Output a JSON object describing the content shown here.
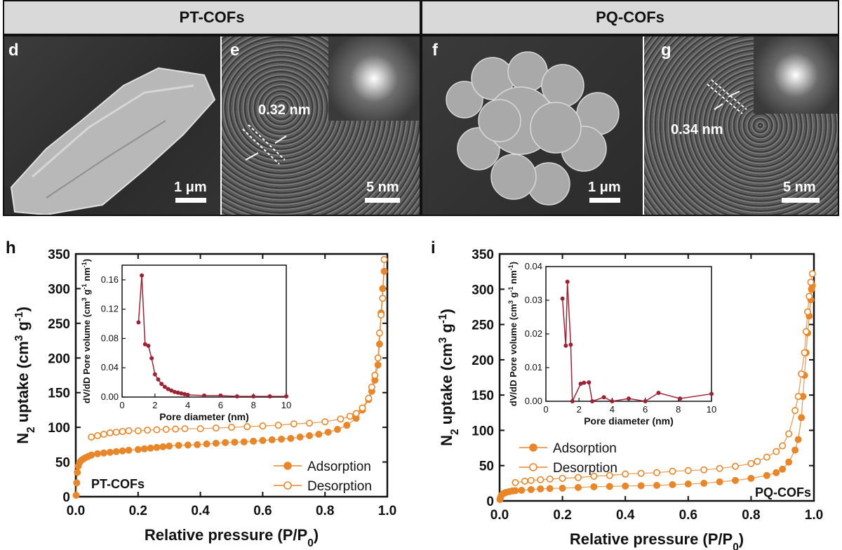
{
  "headers": {
    "left": "PT-COFs",
    "right": "PQ-COFs"
  },
  "micro_panels": {
    "d": {
      "label": "d",
      "scale": "1 μm"
    },
    "e": {
      "label": "e",
      "scale": "5 nm",
      "spacing": "0.32 nm"
    },
    "f": {
      "label": "f",
      "scale": "1 μm"
    },
    "g": {
      "label": "g",
      "scale": "5 nm",
      "spacing": "0.34 nm"
    }
  },
  "colors": {
    "series": "#e8862a",
    "inset": "#9b2335",
    "axis": "#111111"
  },
  "chart_data": [
    {
      "panel": "h",
      "type": "line",
      "title": "",
      "annotation": "PT-COFs",
      "xlabel": "Relative pressure (P/P",
      "xlabel_sub": "0",
      "xlabel_end": ")",
      "ylabel_pre": "N",
      "ylabel_sub": "2",
      "ylabel_mid": " uptake (cm",
      "ylabel_sup1": "3",
      "ylabel_mid2": " g",
      "ylabel_sup2": "-1",
      "ylabel_end": ")",
      "xlim": [
        0,
        1.0
      ],
      "ylim": [
        0,
        350
      ],
      "xticks": [
        "0.0",
        "0.2",
        "0.4",
        "0.6",
        "0.8",
        "1.0"
      ],
      "yticks": [
        "0",
        "50",
        "100",
        "150",
        "200",
        "250",
        "300",
        "350"
      ],
      "legend": [
        "Adsorption",
        "Desorption"
      ],
      "series": [
        {
          "name": "Adsorption",
          "x": [
            0.001,
            0.003,
            0.005,
            0.008,
            0.012,
            0.017,
            0.023,
            0.03,
            0.04,
            0.05,
            0.07,
            0.09,
            0.11,
            0.13,
            0.15,
            0.17,
            0.2,
            0.22,
            0.24,
            0.26,
            0.28,
            0.3,
            0.33,
            0.36,
            0.39,
            0.42,
            0.45,
            0.48,
            0.51,
            0.54,
            0.57,
            0.6,
            0.63,
            0.66,
            0.69,
            0.72,
            0.75,
            0.78,
            0.81,
            0.84,
            0.87,
            0.9,
            0.92,
            0.94,
            0.95,
            0.96,
            0.97,
            0.975,
            0.98,
            0.985,
            0.99
          ],
          "y": [
            2,
            20,
            35,
            44,
            49,
            52,
            54,
            56,
            58,
            60,
            62,
            63,
            64,
            65,
            66,
            67,
            68,
            69,
            70,
            71,
            72,
            73,
            74,
            74.5,
            75,
            76,
            77,
            78,
            78.5,
            79,
            80,
            81,
            82,
            83,
            84,
            86,
            88,
            90,
            93,
            97,
            103,
            113,
            125,
            140,
            152,
            168,
            190,
            220,
            265,
            300,
            325
          ]
        },
        {
          "name": "Desorption",
          "x": [
            0.05,
            0.07,
            0.09,
            0.11,
            0.13,
            0.15,
            0.17,
            0.2,
            0.23,
            0.26,
            0.29,
            0.32,
            0.35,
            0.4,
            0.45,
            0.5,
            0.55,
            0.6,
            0.65,
            0.7,
            0.75,
            0.8,
            0.85,
            0.88,
            0.9,
            0.92,
            0.94,
            0.95,
            0.96,
            0.97,
            0.975,
            0.98,
            0.985,
            0.99
          ],
          "y": [
            86,
            88,
            90,
            92,
            93,
            94,
            95,
            95,
            96,
            96.5,
            97,
            97.5,
            98,
            98,
            99,
            100,
            101,
            102,
            103,
            105,
            106,
            108,
            112,
            116,
            120,
            128,
            142,
            158,
            175,
            200,
            236,
            262,
            286,
            342
          ]
        }
      ],
      "inset": {
        "xlabel": "Pore diameter (nm)",
        "ylabel_pre": "dV/dD Pore volume (cm",
        "ylabel_sup1": "3",
        "ylabel_mid": " g",
        "ylabel_sup2": "-1",
        "ylabel_mid2": " nm",
        "ylabel_sup3": "-1",
        "ylabel_end": ")",
        "xlim": [
          0,
          10
        ],
        "ylim": [
          0,
          0.18
        ],
        "xticks": [
          "0",
          "2",
          "4",
          "6",
          "8",
          "10"
        ],
        "yticks": [
          "0.00",
          "0.04",
          "0.08",
          "0.12",
          "0.16"
        ],
        "x": [
          1.0,
          1.2,
          1.4,
          1.6,
          1.8,
          2.0,
          2.2,
          2.4,
          2.6,
          2.8,
          3.0,
          3.2,
          3.4,
          3.6,
          3.8,
          4.0,
          5.0,
          6.0,
          7.0,
          8.0,
          9.0,
          10.0
        ],
        "y": [
          0.102,
          0.166,
          0.072,
          0.07,
          0.053,
          0.031,
          0.024,
          0.018,
          0.014,
          0.011,
          0.009,
          0.007,
          0.006,
          0.005,
          0.004,
          0.003,
          0.002,
          0.002,
          0.001,
          0.001,
          0.001,
          0.001
        ]
      }
    },
    {
      "panel": "i",
      "type": "line",
      "title": "",
      "annotation": "PQ-COFs",
      "xlabel": "Relative pressure (P/P",
      "xlabel_sub": "0",
      "xlabel_end": ")",
      "ylabel_pre": "N",
      "ylabel_sub": "2",
      "ylabel_mid": " uptake (cm",
      "ylabel_sup1": "3",
      "ylabel_mid2": " g",
      "ylabel_sup2": "-1",
      "ylabel_end": ")",
      "xlim": [
        0,
        1.0
      ],
      "ylim": [
        0,
        350
      ],
      "xticks": [
        "0.0",
        "0.2",
        "0.4",
        "0.6",
        "0.8",
        "1.0"
      ],
      "yticks": [
        "0",
        "50",
        "100",
        "150",
        "200",
        "250",
        "300",
        "350"
      ],
      "legend": [
        "Adsorption",
        "Desorption"
      ],
      "series": [
        {
          "name": "Adsorption",
          "x": [
            0.001,
            0.003,
            0.006,
            0.01,
            0.015,
            0.02,
            0.03,
            0.04,
            0.05,
            0.07,
            0.1,
            0.13,
            0.16,
            0.2,
            0.25,
            0.3,
            0.35,
            0.4,
            0.45,
            0.5,
            0.55,
            0.6,
            0.65,
            0.7,
            0.75,
            0.8,
            0.85,
            0.88,
            0.9,
            0.92,
            0.94,
            0.95,
            0.96,
            0.965,
            0.97,
            0.975,
            0.98,
            0.985,
            0.99,
            0.992,
            0.995
          ],
          "y": [
            2,
            5,
            8,
            10,
            11,
            12,
            13,
            14,
            14.5,
            15,
            16,
            17,
            17.5,
            18,
            19,
            20,
            20.5,
            21,
            21.5,
            22,
            23,
            24,
            25,
            27,
            29,
            32,
            36,
            40,
            45,
            55,
            72,
            87,
            118,
            148,
            178,
            210,
            238,
            262,
            285,
            300,
            305
          ]
        },
        {
          "name": "Desorption",
          "x": [
            0.05,
            0.08,
            0.1,
            0.13,
            0.16,
            0.2,
            0.25,
            0.3,
            0.35,
            0.4,
            0.45,
            0.5,
            0.55,
            0.6,
            0.65,
            0.7,
            0.75,
            0.8,
            0.82,
            0.85,
            0.88,
            0.9,
            0.92,
            0.94,
            0.95,
            0.96,
            0.97,
            0.975,
            0.98,
            0.985,
            0.99,
            0.995
          ],
          "y": [
            26,
            28,
            29,
            30,
            31,
            32,
            33,
            35,
            36,
            38,
            39,
            40,
            42,
            43,
            44,
            46,
            49,
            53,
            56,
            62,
            70,
            78,
            95,
            128,
            148,
            180,
            210,
            240,
            268,
            290,
            310,
            322
          ]
        }
      ],
      "inset": {
        "xlabel": "Pore diameter (nm)",
        "ylabel_pre": "dV/dD Pore volume (cm",
        "ylabel_sup1": "3",
        "ylabel_mid": " g",
        "ylabel_sup2": "-1",
        "ylabel_mid2": " nm",
        "ylabel_sup3": "-1",
        "ylabel_end": ")",
        "xlim": [
          0,
          10
        ],
        "ylim": [
          0,
          0.04
        ],
        "xticks": [
          "0",
          "2",
          "4",
          "6",
          "8",
          "10"
        ],
        "yticks": [
          "0.00",
          "0.01",
          "0.02",
          "0.03",
          "0.04"
        ],
        "x": [
          1.0,
          1.2,
          1.3,
          1.5,
          1.6,
          2.1,
          2.3,
          2.6,
          2.8,
          3.5,
          4.0,
          5.0,
          6.0,
          6.8,
          8.1,
          10.0
        ],
        "y": [
          0.0305,
          0.0165,
          0.0355,
          0.0168,
          0.0,
          0.0052,
          0.0055,
          0.0056,
          0.0,
          0.0012,
          0.0,
          0.0008,
          0.0,
          0.0025,
          0.0008,
          0.0022
        ]
      }
    }
  ]
}
